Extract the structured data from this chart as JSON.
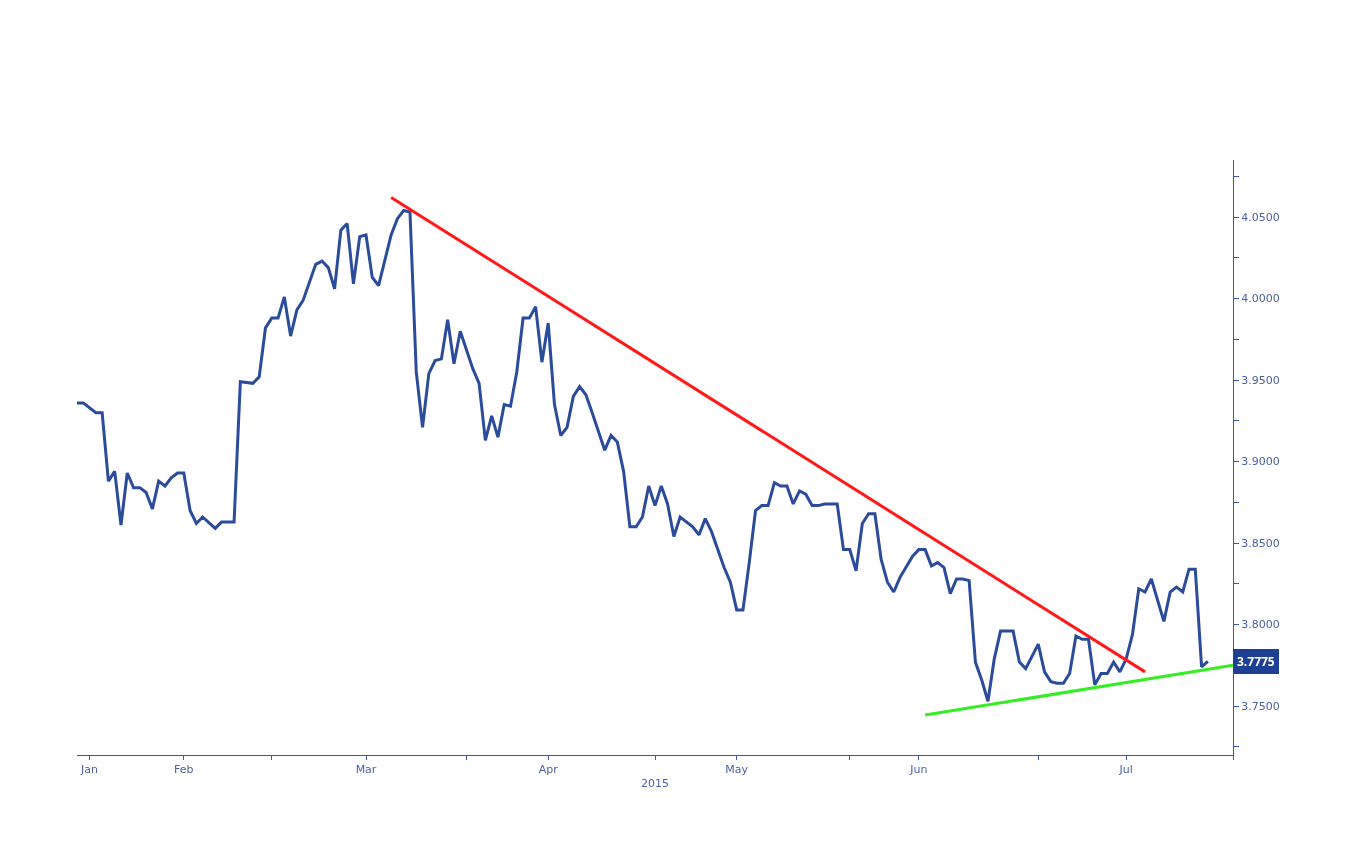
{
  "chart_data": {
    "type": "line",
    "xlabel": "2015",
    "grid": false,
    "marker": "none",
    "line_style": "solid",
    "tick_labels": "xy",
    "xlim": [
      "2015-01-29",
      "2015-08-01"
    ],
    "xticks": [
      {
        "value": "2015-01-31",
        "label": "Jan"
      },
      {
        "value": "2015-02-15",
        "label": "Feb"
      },
      {
        "value": "2015-03-01",
        "label": null
      },
      {
        "value": "2015-03-16",
        "label": "Mar"
      },
      {
        "value": "2015-04-01",
        "label": null
      },
      {
        "value": "2015-04-14",
        "label": "Apr"
      },
      {
        "value": "2015-05-01",
        "label": null
      },
      {
        "value": "2015-05-14",
        "label": "May"
      },
      {
        "value": "2015-06-01",
        "label": null
      },
      {
        "value": "2015-06-12",
        "label": "Jun"
      },
      {
        "value": "2015-07-01",
        "label": null
      },
      {
        "value": "2015-07-15",
        "label": "Jul"
      },
      {
        "value": "2015-08-01",
        "label": null
      }
    ],
    "ylim": [
      3.72,
      4.085
    ],
    "yticks": [
      {
        "value": 3.725,
        "label": null
      },
      {
        "value": 3.75,
        "label": "3.7500"
      },
      {
        "value": 3.775,
        "label": null
      },
      {
        "value": 3.8,
        "label": "3.8000"
      },
      {
        "value": 3.825,
        "label": null
      },
      {
        "value": 3.85,
        "label": "3.8500"
      },
      {
        "value": 3.875,
        "label": null
      },
      {
        "value": 3.9,
        "label": "3.9000"
      },
      {
        "value": 3.925,
        "label": null
      },
      {
        "value": 3.95,
        "label": "3.9500"
      },
      {
        "value": 3.975,
        "label": null
      },
      {
        "value": 4.0,
        "label": "4.0000"
      },
      {
        "value": 4.025,
        "label": null
      },
      {
        "value": 4.05,
        "label": "4.0500"
      },
      {
        "value": 4.075,
        "label": null
      }
    ],
    "annotations": [
      "3.7775"
    ],
    "series": [
      {
        "color": "#2b4c9b",
        "x": [
          "2015-01-29",
          "2015-01-30",
          "2015-02-01",
          "2015-02-02",
          "2015-02-03",
          "2015-02-04",
          "2015-02-05",
          "2015-02-06",
          "2015-02-07",
          "2015-02-08",
          "2015-02-09",
          "2015-02-10",
          "2015-02-11",
          "2015-02-12",
          "2015-02-13",
          "2015-02-14",
          "2015-02-15",
          "2015-02-16",
          "2015-02-17",
          "2015-02-18",
          "2015-02-20",
          "2015-02-21",
          "2015-02-23",
          "2015-02-24",
          "2015-02-26",
          "2015-02-27",
          "2015-02-28",
          "2015-03-01",
          "2015-03-02",
          "2015-03-03",
          "2015-03-04",
          "2015-03-05",
          "2015-03-06",
          "2015-03-08",
          "2015-03-09",
          "2015-03-10",
          "2015-03-11",
          "2015-03-12",
          "2015-03-13",
          "2015-03-14",
          "2015-03-15",
          "2015-03-16",
          "2015-03-17",
          "2015-03-18",
          "2015-03-20",
          "2015-03-21",
          "2015-03-22",
          "2015-03-23",
          "2015-03-24",
          "2015-03-25",
          "2015-03-26",
          "2015-03-27",
          "2015-03-28",
          "2015-03-29",
          "2015-03-30",
          "2015-03-31",
          "2015-04-02",
          "2015-04-03",
          "2015-04-04",
          "2015-04-05",
          "2015-04-06",
          "2015-04-07",
          "2015-04-08",
          "2015-04-09",
          "2015-04-10",
          "2015-04-11",
          "2015-04-12",
          "2015-04-13",
          "2015-04-14",
          "2015-04-15",
          "2015-04-16",
          "2015-04-17",
          "2015-04-18",
          "2015-04-19",
          "2015-04-20",
          "2015-04-21",
          "2015-04-23",
          "2015-04-24",
          "2015-04-25",
          "2015-04-26",
          "2015-04-27",
          "2015-04-28",
          "2015-04-29",
          "2015-04-30",
          "2015-05-01",
          "2015-05-02",
          "2015-05-03",
          "2015-05-04",
          "2015-05-05",
          "2015-05-06",
          "2015-05-07",
          "2015-05-08",
          "2015-05-09",
          "2015-05-10",
          "2015-05-12",
          "2015-05-13",
          "2015-05-14",
          "2015-05-15",
          "2015-05-16",
          "2015-05-17",
          "2015-05-18",
          "2015-05-19",
          "2015-05-20",
          "2015-05-21",
          "2015-05-22",
          "2015-05-23",
          "2015-05-24",
          "2015-05-25",
          "2015-05-26",
          "2015-05-27",
          "2015-05-28",
          "2015-05-30",
          "2015-05-31",
          "2015-06-01",
          "2015-06-02",
          "2015-06-03",
          "2015-06-04",
          "2015-06-05",
          "2015-06-06",
          "2015-06-07",
          "2015-06-08",
          "2015-06-09",
          "2015-06-11",
          "2015-06-12",
          "2015-06-13",
          "2015-06-14",
          "2015-06-15",
          "2015-06-16",
          "2015-06-17",
          "2015-06-18",
          "2015-06-19",
          "2015-06-20",
          "2015-06-21",
          "2015-06-22",
          "2015-06-23",
          "2015-06-24",
          "2015-06-25",
          "2015-06-26",
          "2015-06-27",
          "2015-06-28",
          "2015-06-29",
          "2015-07-01",
          "2015-07-02",
          "2015-07-03",
          "2015-07-04",
          "2015-07-05",
          "2015-07-06",
          "2015-07-07",
          "2015-07-08",
          "2015-07-09",
          "2015-07-10",
          "2015-07-11",
          "2015-07-12",
          "2015-07-13",
          "2015-07-14",
          "2015-07-15",
          "2015-07-16",
          "2015-07-17",
          "2015-07-18",
          "2015-07-19",
          "2015-07-21",
          "2015-07-22",
          "2015-07-23",
          "2015-07-24",
          "2015-07-25",
          "2015-07-26",
          "2015-07-27",
          "2015-07-28"
        ],
        "values": [
          3.936,
          3.936,
          3.93,
          3.93,
          3.888,
          3.894,
          3.861,
          3.893,
          3.884,
          3.884,
          3.881,
          3.871,
          3.888,
          3.885,
          3.89,
          3.893,
          3.893,
          3.87,
          3.862,
          3.866,
          3.859,
          3.863,
          3.863,
          3.949,
          3.948,
          3.952,
          3.982,
          3.988,
          3.988,
          4.001,
          3.977,
          3.993,
          3.999,
          4.021,
          4.023,
          4.019,
          4.006,
          4.042,
          4.046,
          4.009,
          4.038,
          4.039,
          4.013,
          4.008,
          4.039,
          4.049,
          4.054,
          4.053,
          3.955,
          3.921,
          3.954,
          3.962,
          3.963,
          3.987,
          3.96,
          3.98,
          3.957,
          3.948,
          3.913,
          3.928,
          3.915,
          3.935,
          3.934,
          3.955,
          3.988,
          3.988,
          3.995,
          3.961,
          3.985,
          3.935,
          3.916,
          3.921,
          3.94,
          3.946,
          3.941,
          3.93,
          3.907,
          3.916,
          3.912,
          3.894,
          3.86,
          3.86,
          3.866,
          3.885,
          3.873,
          3.885,
          3.874,
          3.854,
          3.866,
          3.863,
          3.86,
          3.855,
          3.865,
          3.857,
          3.835,
          3.826,
          3.809,
          3.809,
          3.838,
          3.87,
          3.873,
          3.873,
          3.887,
          3.885,
          3.885,
          3.874,
          3.882,
          3.88,
          3.873,
          3.873,
          3.874,
          3.874,
          3.846,
          3.846,
          3.833,
          3.862,
          3.868,
          3.868,
          3.84,
          3.826,
          3.82,
          3.829,
          3.842,
          3.846,
          3.846,
          3.836,
          3.838,
          3.835,
          3.819,
          3.828,
          3.828,
          3.827,
          3.777,
          3.766,
          3.753,
          3.779,
          3.796,
          3.796,
          3.796,
          3.777,
          3.773,
          3.788,
          3.771,
          3.765,
          3.764,
          3.764,
          3.77,
          3.793,
          3.791,
          3.791,
          3.763,
          3.77,
          3.77,
          3.777,
          3.771,
          3.779,
          3.794,
          3.822,
          3.82,
          3.828,
          3.802,
          3.82,
          3.823,
          3.82,
          3.834,
          3.834,
          3.774,
          3.7775
        ]
      },
      {
        "color": "#ff1a1a",
        "x": [
          "2015-03-20",
          "2015-07-18"
        ],
        "values": [
          4.062,
          3.771
        ]
      },
      {
        "color": "#33ee22",
        "x": [
          "2015-06-13",
          "2015-08-01"
        ],
        "values": [
          3.7445,
          3.775
        ]
      }
    ]
  }
}
